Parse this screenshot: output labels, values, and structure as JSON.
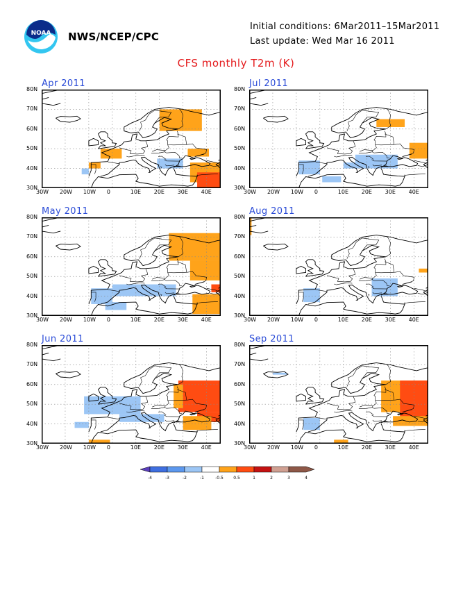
{
  "header": {
    "org": "NWS/NCEP/CPC",
    "initial": "Initial conditions: 6Mar2011–15Mar2011",
    "update": "Last update: Wed Mar 16 2011",
    "title": "CFS monthly T2m (K)",
    "logo_icon": "noaa-logo-icon"
  },
  "map": {
    "lat_labels": [
      "80N",
      "70N",
      "60N",
      "50N",
      "40N",
      "30N"
    ],
    "lon_labels": [
      "30W",
      "20W",
      "10W",
      "0",
      "10E",
      "20E",
      "30E",
      "40E"
    ]
  },
  "panels": [
    {
      "month": "Apr 2011",
      "anomalies": [
        {
          "lon": [
            20,
            38
          ],
          "lat": [
            59,
            70
          ],
          "class": "0.5-1"
        },
        {
          "lon": [
            -5,
            4
          ],
          "lat": [
            45,
            50
          ],
          "class": "0.5-1"
        },
        {
          "lon": [
            -10,
            -5
          ],
          "lat": [
            40,
            43
          ],
          "class": "0.5-1"
        },
        {
          "lon": [
            32,
            41
          ],
          "lat": [
            46,
            50
          ],
          "class": "0.5-1"
        },
        {
          "lon": [
            33,
            46
          ],
          "lat": [
            33,
            43
          ],
          "class": "0.5-1"
        },
        {
          "lon": [
            36,
            46
          ],
          "lat": [
            30,
            38
          ],
          "class": "1-2"
        },
        {
          "lon": [
            19,
            30
          ],
          "lat": [
            40,
            45
          ],
          "class": "-1--0.5"
        },
        {
          "lon": [
            -13,
            -10
          ],
          "lat": [
            37,
            40
          ],
          "class": "-1--0.5"
        }
      ]
    },
    {
      "month": "Jul 2011",
      "anomalies": [
        {
          "lon": [
            24,
            36
          ],
          "lat": [
            61,
            65
          ],
          "class": "0.5-1"
        },
        {
          "lon": [
            38,
            46
          ],
          "lat": [
            45,
            53
          ],
          "class": "0.5-1"
        },
        {
          "lon": [
            -9,
            0
          ],
          "lat": [
            37,
            44
          ],
          "class": "-1--0.5"
        },
        {
          "lon": [
            1,
            9
          ],
          "lat": [
            33,
            36
          ],
          "class": "-1--0.5"
        },
        {
          "lon": [
            15,
            33
          ],
          "lat": [
            40,
            47
          ],
          "class": "-1--0.5"
        },
        {
          "lon": [
            10,
            15
          ],
          "lat": [
            40,
            43
          ],
          "class": "-1--0.5"
        }
      ]
    },
    {
      "month": "May 2011",
      "anomalies": [
        {
          "lon": [
            24,
            46
          ],
          "lat": [
            58,
            72
          ],
          "class": "0.5-1"
        },
        {
          "lon": [
            33,
            46
          ],
          "lat": [
            48,
            58
          ],
          "class": "0.5-1"
        },
        {
          "lon": [
            34,
            46
          ],
          "lat": [
            31,
            41
          ],
          "class": "0.5-1"
        },
        {
          "lon": [
            42,
            46
          ],
          "lat": [
            42,
            46
          ],
          "class": "1-2"
        },
        {
          "lon": [
            -9,
            0
          ],
          "lat": [
            36,
            44
          ],
          "class": "-1--0.5"
        },
        {
          "lon": [
            0,
            27
          ],
          "lat": [
            40,
            46
          ],
          "class": "-1--0.5"
        },
        {
          "lon": [
            -3,
            6
          ],
          "lat": [
            33,
            37
          ],
          "class": "-1--0.5"
        }
      ]
    },
    {
      "month": "Aug 2011",
      "anomalies": [
        {
          "lon": [
            -30,
            -29
          ],
          "lat": [
            71,
            80
          ],
          "class": "0.5-1"
        },
        {
          "lon": [
            42,
            46
          ],
          "lat": [
            52,
            54
          ],
          "class": "0.5-1"
        },
        {
          "lon": [
            -7,
            0
          ],
          "lat": [
            37,
            44
          ],
          "class": "-1--0.5"
        },
        {
          "lon": [
            22,
            33
          ],
          "lat": [
            40,
            49
          ],
          "class": "-1--0.5"
        }
      ]
    },
    {
      "month": "Jun 2011",
      "anomalies": [
        {
          "lon": [
            28,
            46
          ],
          "lat": [
            46,
            62
          ],
          "class": "1-2"
        },
        {
          "lon": [
            36,
            46
          ],
          "lat": [
            41,
            46
          ],
          "class": "1-2"
        },
        {
          "lon": [
            30,
            42
          ],
          "lat": [
            37,
            44
          ],
          "class": "0.5-1"
        },
        {
          "lon": [
            26,
            30
          ],
          "lat": [
            48,
            60
          ],
          "class": "0.5-1"
        },
        {
          "lon": [
            -10,
            -1
          ],
          "lat": [
            30,
            32
          ],
          "class": "0.5-1"
        },
        {
          "lon": [
            -12,
            12
          ],
          "lat": [
            45,
            54
          ],
          "class": "-1--0.5"
        },
        {
          "lon": [
            3,
            22
          ],
          "lat": [
            41,
            45
          ],
          "class": "-1--0.5"
        },
        {
          "lon": [
            -16,
            -10
          ],
          "lat": [
            38,
            41
          ],
          "class": "-1--0.5"
        }
      ]
    },
    {
      "month": "Sep 2011",
      "anomalies": [
        {
          "lon": [
            -20,
            -14
          ],
          "lat": [
            65,
            66
          ],
          "class": "-1--0.5"
        },
        {
          "lon": [
            -7,
            0
          ],
          "lat": [
            37,
            43
          ],
          "class": "-1--0.5"
        },
        {
          "lon": [
            26,
            46
          ],
          "lat": [
            46,
            62
          ],
          "class": "0.5-1"
        },
        {
          "lon": [
            34,
            46
          ],
          "lat": [
            42,
            62
          ],
          "class": "1-2"
        },
        {
          "lon": [
            31,
            46
          ],
          "lat": [
            39,
            44
          ],
          "class": "0.5-1"
        },
        {
          "lon": [
            6,
            12
          ],
          "lat": [
            30,
            32
          ],
          "class": "0.5-1"
        }
      ]
    }
  ],
  "colorbar": {
    "labels": [
      "-4",
      "-3",
      "-2",
      "-1",
      "-0.5",
      "0.5",
      "1",
      "2",
      "3",
      "4"
    ],
    "colors": [
      "#5b3fbf",
      "#3f6fe0",
      "#5c98ee",
      "#9cc6f5",
      "#ffffff",
      "#ffa31a",
      "#ff4c12",
      "#c41212",
      "#d0a092",
      "#8e5848"
    ]
  },
  "anomaly_colors": {
    "-1--0.5": "#9cc6f5",
    "0.5-1": "#ffa31a",
    "1-2": "#ff4c12"
  }
}
